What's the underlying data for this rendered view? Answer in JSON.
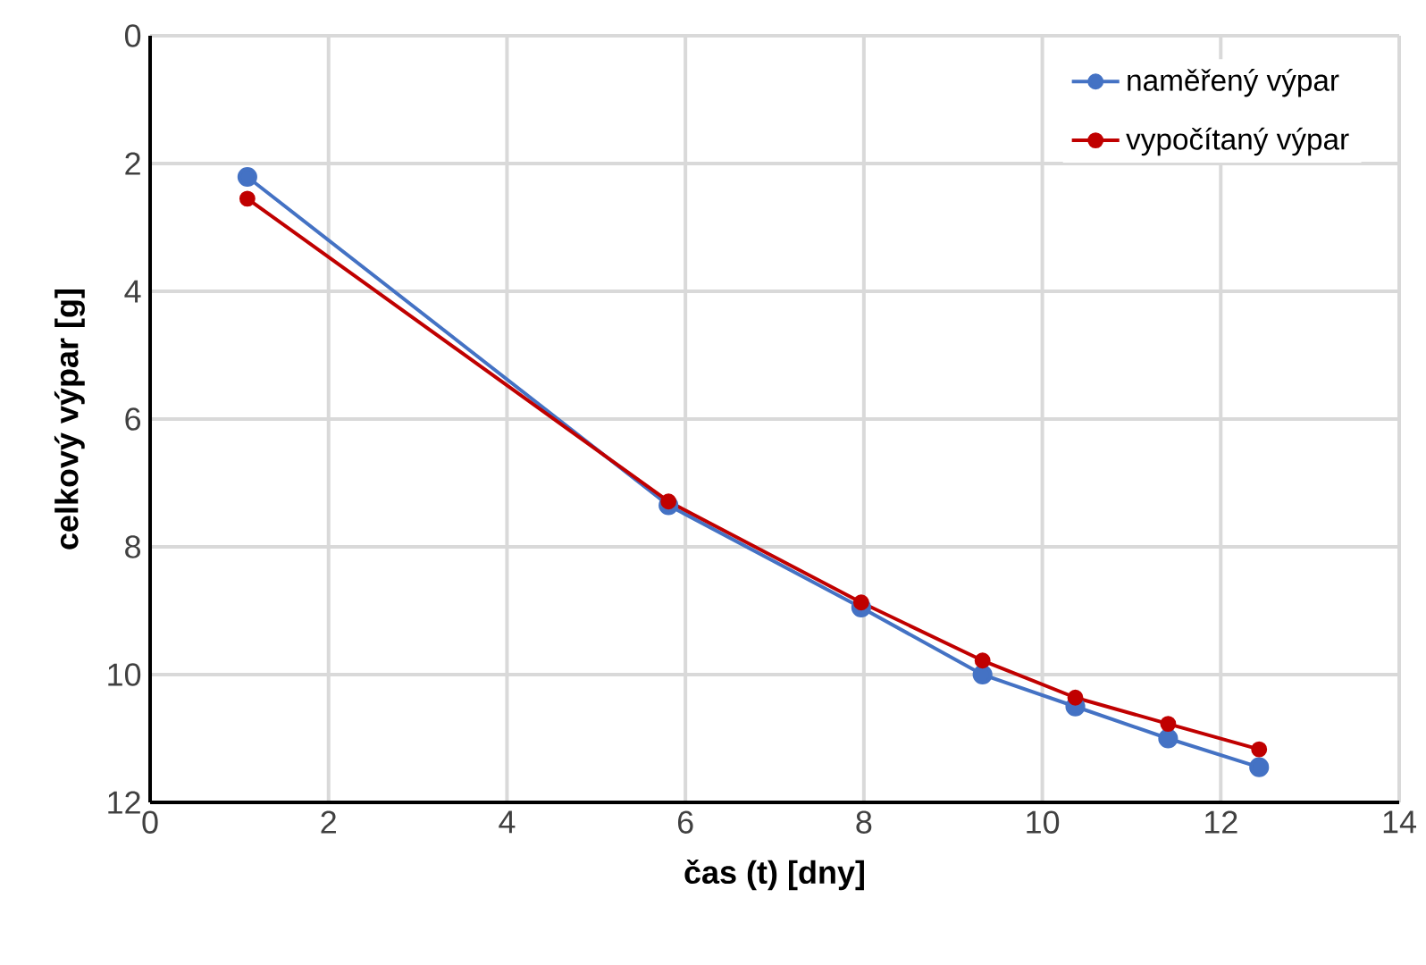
{
  "chart_data": {
    "type": "line",
    "xlabel": "čas (t) [dny]",
    "ylabel": "celkový výpar [g]",
    "x": [
      1.09,
      5.81,
      7.97,
      9.33,
      10.37,
      11.41,
      12.43
    ],
    "series": [
      {
        "name": "naměřený výpar",
        "color": "#4472c4",
        "values": [
          2.21,
          7.35,
          8.95,
          10.0,
          10.5,
          11.0,
          11.45
        ]
      },
      {
        "name": "vypočítaný výpar",
        "color": "#c00000",
        "values": [
          2.55,
          7.29,
          8.87,
          9.78,
          10.36,
          10.77,
          11.17
        ]
      }
    ],
    "xlim": [
      0,
      14
    ],
    "xticks": [
      0,
      2,
      4,
      6,
      8,
      10,
      12,
      14
    ],
    "ylim": [
      12,
      0
    ],
    "yticks": [
      0,
      2,
      4,
      6,
      8,
      10,
      12
    ],
    "grid": true,
    "legend": "top right",
    "marker": "circle",
    "line_style": "solid"
  }
}
